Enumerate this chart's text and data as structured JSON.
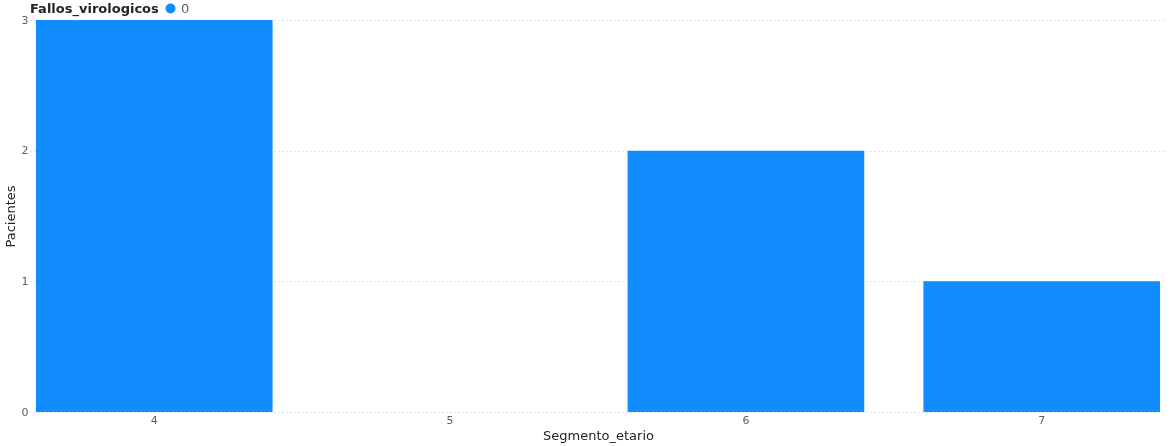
{
  "chart_data": {
    "type": "bar",
    "xlabel": "Segmento_etario",
    "ylabel": "Pacientes",
    "legend_title": "Fallos_virologicos",
    "categories": [
      "4",
      "5",
      "6",
      "7"
    ],
    "series": [
      {
        "name": "0",
        "color": "#118dff",
        "values": [
          3,
          null,
          2,
          1
        ]
      }
    ],
    "ylim": [
      0,
      3
    ],
    "yticks": [
      0,
      1,
      2,
      3
    ],
    "grid": "y",
    "legend": "top left"
  }
}
